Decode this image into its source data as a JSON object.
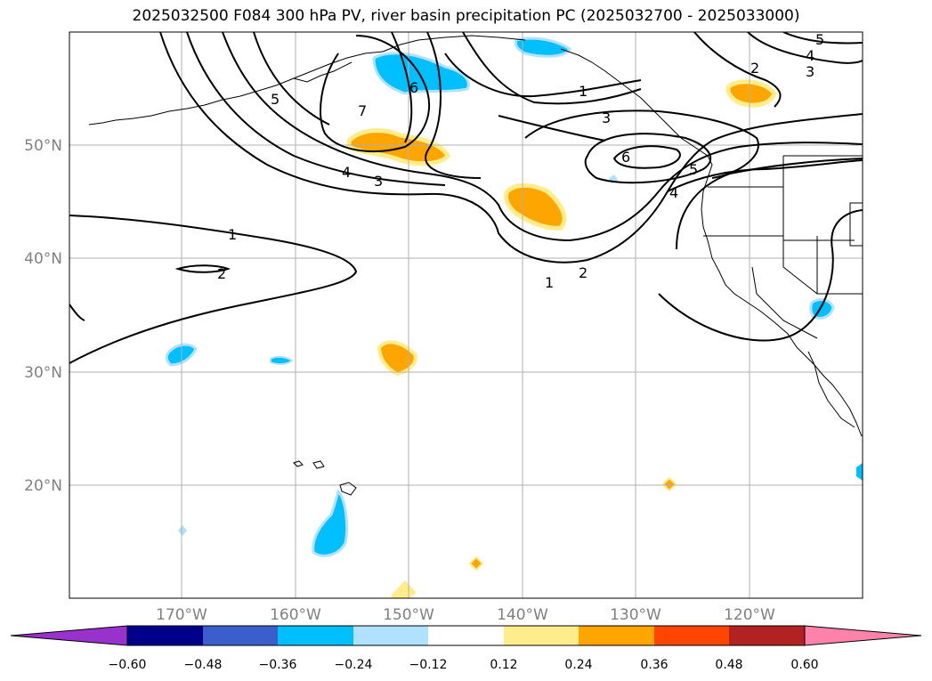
{
  "title": "2025032500 F084 300 hPa PV, river basin precipitation PC (2025032700 - 2025033000)",
  "lat_labels": [
    "50°N",
    "40°N",
    "30°N",
    "20°N"
  ],
  "lon_labels": [
    "170°W",
    "160°W",
    "150°W",
    "140°W",
    "130°W",
    "120°W"
  ],
  "colorbar": {
    "ticks": [
      "−0.60",
      "−0.48",
      "−0.36",
      "−0.24",
      "−0.12",
      "0.12",
      "0.24",
      "0.36",
      "0.48",
      "0.60"
    ],
    "colors": [
      "#9932cc",
      "#00008b",
      "#3a5fcd",
      "#00bfff",
      "#b0e2ff",
      "#ffffff",
      "#ffec8b",
      "#ffa500",
      "#ff4500",
      "#b22222",
      "#ff82ab"
    ]
  },
  "contour_labels": [
    "1",
    "1",
    "1",
    "2",
    "2",
    "2",
    "3",
    "3",
    "3",
    "4",
    "4",
    "4",
    "5",
    "5",
    "5",
    "6",
    "6",
    "7"
  ]
}
